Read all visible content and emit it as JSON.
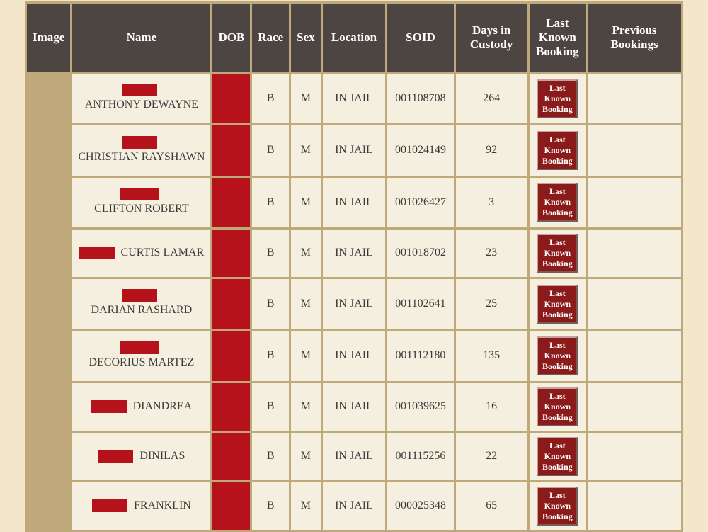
{
  "headers": {
    "image": "Image",
    "name": "Name",
    "dob": "DOB",
    "race": "Race",
    "sex": "Sex",
    "location": "Location",
    "soid": "SOID",
    "days": "Days in Custody",
    "lkb": "Last Known Booking",
    "prev": "Previous Bookings"
  },
  "button_label": "Last Known Booking",
  "rows": [
    {
      "redact_width": 50,
      "name": "ANTHONY DEWAYNE",
      "race": "B",
      "sex": "M",
      "location": "IN JAIL",
      "soid": "001108708",
      "days": "264"
    },
    {
      "redact_width": 50,
      "name": "CHRISTIAN RAYSHAWN",
      "race": "B",
      "sex": "M",
      "location": "IN JAIL",
      "soid": "001024149",
      "days": "92"
    },
    {
      "redact_width": 56,
      "name": "CLIFTON ROBERT",
      "race": "B",
      "sex": "M",
      "location": "IN JAIL",
      "soid": "001026427",
      "days": "3"
    },
    {
      "redact_width": 50,
      "name": "CURTIS LAMAR",
      "race": "B",
      "sex": "M",
      "location": "IN JAIL",
      "soid": "001018702",
      "days": "23"
    },
    {
      "redact_width": 50,
      "name": "DARIAN RASHARD",
      "race": "B",
      "sex": "M",
      "location": "IN JAIL",
      "soid": "001102641",
      "days": "25"
    },
    {
      "redact_width": 56,
      "name": "DECORIUS MARTEZ",
      "race": "B",
      "sex": "M",
      "location": "IN JAIL",
      "soid": "001112180",
      "days": "135"
    },
    {
      "redact_width": 50,
      "name": "DIANDREA",
      "race": "B",
      "sex": "M",
      "location": "IN JAIL",
      "soid": "001039625",
      "days": "16"
    },
    {
      "redact_width": 50,
      "name": "DINILAS",
      "race": "B",
      "sex": "M",
      "location": "IN JAIL",
      "soid": "001115256",
      "days": "22"
    },
    {
      "redact_width": 50,
      "name": "FRANKLIN",
      "race": "B",
      "sex": "M",
      "location": "IN JAIL",
      "soid": "000025348",
      "days": "65"
    }
  ],
  "colors": {
    "page_bg": "#f3e6ca",
    "table_bg": "#bfa87a",
    "header_bg": "#4d4541",
    "header_text": "#ffffff",
    "cell_bg": "#f5efe0",
    "redact": "#b5121b",
    "button_bg": "#8b1a1a"
  }
}
